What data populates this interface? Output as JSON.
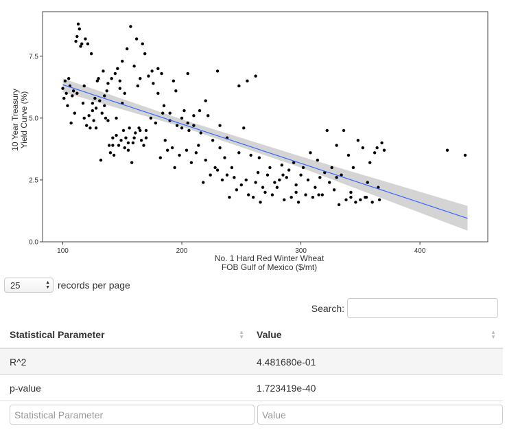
{
  "chart_data": {
    "type": "scatter",
    "xlabel": "No. 1 Hard Red Winter Wheat\nFOB Gulf of Mexico ($/mt)",
    "ylabel": "10 Year Treasury\nYield Curve (%)",
    "xlim": [
      83,
      457
    ],
    "ylim": [
      0,
      9.3
    ],
    "x_ticks": [
      100,
      200,
      300,
      400
    ],
    "y_ticks": [
      0.0,
      2.5,
      5.0,
      7.5
    ],
    "y_tick_labels": [
      "0.0",
      "2.5",
      "5.0",
      "7.5"
    ],
    "grid": false,
    "point_color": "#000000",
    "trend_line": {
      "x": [
        100,
        440
      ],
      "y": [
        6.35,
        0.95
      ],
      "color": "#3366ff"
    },
    "confidence_band": {
      "x": [
        100,
        200,
        300,
        440
      ],
      "lower": [
        6.05,
        4.65,
        3.0,
        0.45
      ],
      "upper": [
        6.6,
        4.95,
        3.45,
        1.45
      ],
      "color": "#cccccc"
    },
    "points": [
      [
        100,
        6.2
      ],
      [
        101,
        5.8
      ],
      [
        102,
        6.5
      ],
      [
        103,
        6.0
      ],
      [
        104,
        5.5
      ],
      [
        105,
        6.6
      ],
      [
        106,
        6.3
      ],
      [
        107,
        4.8
      ],
      [
        108,
        5.9
      ],
      [
        109,
        6.1
      ],
      [
        110,
        5.2
      ],
      [
        111,
        8.1
      ],
      [
        112,
        8.3
      ],
      [
        113,
        8.8
      ],
      [
        114,
        8.6
      ],
      [
        115,
        7.9
      ],
      [
        116,
        8.0
      ],
      [
        117,
        5.6
      ],
      [
        118,
        5.0
      ],
      [
        119,
        8.2
      ],
      [
        120,
        4.7
      ],
      [
        121,
        8.0
      ],
      [
        122,
        5.1
      ],
      [
        123,
        4.6
      ],
      [
        124,
        7.6
      ],
      [
        125,
        5.3
      ],
      [
        126,
        4.9
      ],
      [
        127,
        5.8
      ],
      [
        128,
        4.6
      ],
      [
        129,
        6.5
      ],
      [
        130,
        6.6
      ],
      [
        131,
        5.7
      ],
      [
        132,
        3.3
      ],
      [
        133,
        5.2
      ],
      [
        134,
        6.9
      ],
      [
        135,
        5.5
      ],
      [
        136,
        5.0
      ],
      [
        137,
        6.1
      ],
      [
        138,
        4.9
      ],
      [
        139,
        3.9
      ],
      [
        140,
        3.6
      ],
      [
        141,
        6.6
      ],
      [
        142,
        4.2
      ],
      [
        143,
        3.5
      ],
      [
        144,
        6.8
      ],
      [
        145,
        4.3
      ],
      [
        146,
        7.0
      ],
      [
        147,
        3.9
      ],
      [
        148,
        6.2
      ],
      [
        149,
        4.1
      ],
      [
        150,
        7.3
      ],
      [
        151,
        4.5
      ],
      [
        152,
        6.0
      ],
      [
        153,
        4.2
      ],
      [
        154,
        7.8
      ],
      [
        155,
        3.7
      ],
      [
        156,
        4.6
      ],
      [
        157,
        8.7
      ],
      [
        158,
        3.2
      ],
      [
        159,
        4.0
      ],
      [
        160,
        7.1
      ],
      [
        161,
        4.4
      ],
      [
        162,
        8.2
      ],
      [
        163,
        6.3
      ],
      [
        164,
        4.6
      ],
      [
        165,
        6.6
      ],
      [
        166,
        4.1
      ],
      [
        167,
        8.0
      ],
      [
        168,
        3.9
      ],
      [
        169,
        7.6
      ],
      [
        170,
        4.5
      ],
      [
        172,
        6.7
      ],
      [
        174,
        5.0
      ],
      [
        176,
        6.4
      ],
      [
        178,
        4.8
      ],
      [
        180,
        6.0
      ],
      [
        182,
        3.4
      ],
      [
        184,
        5.2
      ],
      [
        186,
        4.1
      ],
      [
        188,
        3.7
      ],
      [
        190,
        4.9
      ],
      [
        192,
        3.8
      ],
      [
        194,
        3.0
      ],
      [
        196,
        4.7
      ],
      [
        198,
        3.5
      ],
      [
        200,
        4.6
      ],
      [
        202,
        5.3
      ],
      [
        204,
        3.7
      ],
      [
        206,
        4.5
      ],
      [
        208,
        3.2
      ],
      [
        210,
        4.7
      ],
      [
        212,
        3.6
      ],
      [
        214,
        3.9
      ],
      [
        216,
        4.4
      ],
      [
        218,
        2.4
      ],
      [
        220,
        3.3
      ],
      [
        222,
        5.1
      ],
      [
        224,
        2.7
      ],
      [
        226,
        4.1
      ],
      [
        228,
        3.0
      ],
      [
        230,
        2.9
      ],
      [
        232,
        3.8
      ],
      [
        234,
        2.5
      ],
      [
        236,
        3.4
      ],
      [
        238,
        2.7
      ],
      [
        240,
        1.8
      ],
      [
        242,
        3.0
      ],
      [
        244,
        2.6
      ],
      [
        246,
        2.1
      ],
      [
        248,
        3.6
      ],
      [
        250,
        2.3
      ],
      [
        252,
        4.6
      ],
      [
        254,
        2.5
      ],
      [
        256,
        1.9
      ],
      [
        258,
        3.5
      ],
      [
        260,
        1.8
      ],
      [
        262,
        2.4
      ],
      [
        264,
        2.8
      ],
      [
        266,
        1.6
      ],
      [
        268,
        2.2
      ],
      [
        270,
        2.0
      ],
      [
        272,
        2.7
      ],
      [
        274,
        3.0
      ],
      [
        276,
        1.9
      ],
      [
        278,
        2.4
      ],
      [
        280,
        2.2
      ],
      [
        282,
        2.5
      ],
      [
        284,
        3.1
      ],
      [
        286,
        1.7
      ],
      [
        288,
        2.6
      ],
      [
        290,
        2.9
      ],
      [
        292,
        1.8
      ],
      [
        294,
        3.2
      ],
      [
        296,
        2.3
      ],
      [
        298,
        1.6
      ],
      [
        300,
        2.7
      ],
      [
        302,
        3.0
      ],
      [
        304,
        1.9
      ],
      [
        306,
        2.5
      ],
      [
        308,
        3.6
      ],
      [
        310,
        1.8
      ],
      [
        312,
        2.2
      ],
      [
        314,
        3.3
      ],
      [
        316,
        2.6
      ],
      [
        318,
        1.9
      ],
      [
        320,
        2.8
      ],
      [
        322,
        4.5
      ],
      [
        324,
        2.4
      ],
      [
        326,
        3.0
      ],
      [
        328,
        2.1
      ],
      [
        330,
        3.9
      ],
      [
        332,
        1.5
      ],
      [
        334,
        2.7
      ],
      [
        336,
        4.5
      ],
      [
        338,
        1.7
      ],
      [
        340,
        3.5
      ],
      [
        342,
        2.0
      ],
      [
        344,
        3.0
      ],
      [
        346,
        1.6
      ],
      [
        348,
        4.1
      ],
      [
        350,
        1.7
      ],
      [
        352,
        3.8
      ],
      [
        354,
        1.8
      ],
      [
        356,
        2.4
      ],
      [
        358,
        3.2
      ],
      [
        360,
        1.6
      ],
      [
        362,
        3.6
      ],
      [
        364,
        3.8
      ],
      [
        366,
        1.7
      ],
      [
        368,
        4.0
      ],
      [
        370,
        3.7
      ],
      [
        150,
        5.6
      ],
      [
        145,
        5.0
      ],
      [
        135,
        5.9
      ],
      [
        125,
        5.6
      ],
      [
        118,
        6.3
      ],
      [
        112,
        6.0
      ],
      [
        128,
        5.4
      ],
      [
        138,
        6.4
      ],
      [
        148,
        6.5
      ],
      [
        200,
        5.0
      ],
      [
        190,
        5.2
      ],
      [
        205,
        6.8
      ],
      [
        230,
        6.9
      ],
      [
        255,
        6.5
      ],
      [
        262,
        6.7
      ],
      [
        248,
        6.3
      ],
      [
        210,
        5.1
      ],
      [
        220,
        5.7
      ],
      [
        232,
        4.7
      ],
      [
        423,
        3.7
      ],
      [
        438,
        3.5
      ],
      [
        183,
        6.8
      ],
      [
        193,
        6.5
      ],
      [
        205,
        4.8
      ],
      [
        215,
        5.3
      ],
      [
        238,
        4.2
      ],
      [
        265,
        3.4
      ],
      [
        285,
        2.7
      ],
      [
        296,
        2.0
      ],
      [
        315,
        1.9
      ],
      [
        330,
        2.6
      ],
      [
        342,
        1.8
      ],
      [
        355,
        1.8
      ],
      [
        365,
        2.2
      ],
      [
        160,
        4.2
      ],
      [
        165,
        4.5
      ],
      [
        155,
        4.0
      ],
      [
        142,
        3.9
      ],
      [
        152,
        3.8
      ],
      [
        170,
        4.2
      ],
      [
        175,
        6.9
      ],
      [
        180,
        7.0
      ],
      [
        185,
        5.5
      ],
      [
        195,
        6.1
      ]
    ]
  },
  "pager": {
    "value": "25",
    "label": "records per page"
  },
  "search": {
    "label": "Search:"
  },
  "table": {
    "headers": [
      "Statistical Parameter",
      "Value"
    ],
    "rows": [
      {
        "param": "R^2",
        "value": "4.481680e-01"
      },
      {
        "param": "p-value",
        "value": "1.723419e-40"
      }
    ],
    "filters": [
      "Statistical Parameter",
      "Value"
    ]
  }
}
